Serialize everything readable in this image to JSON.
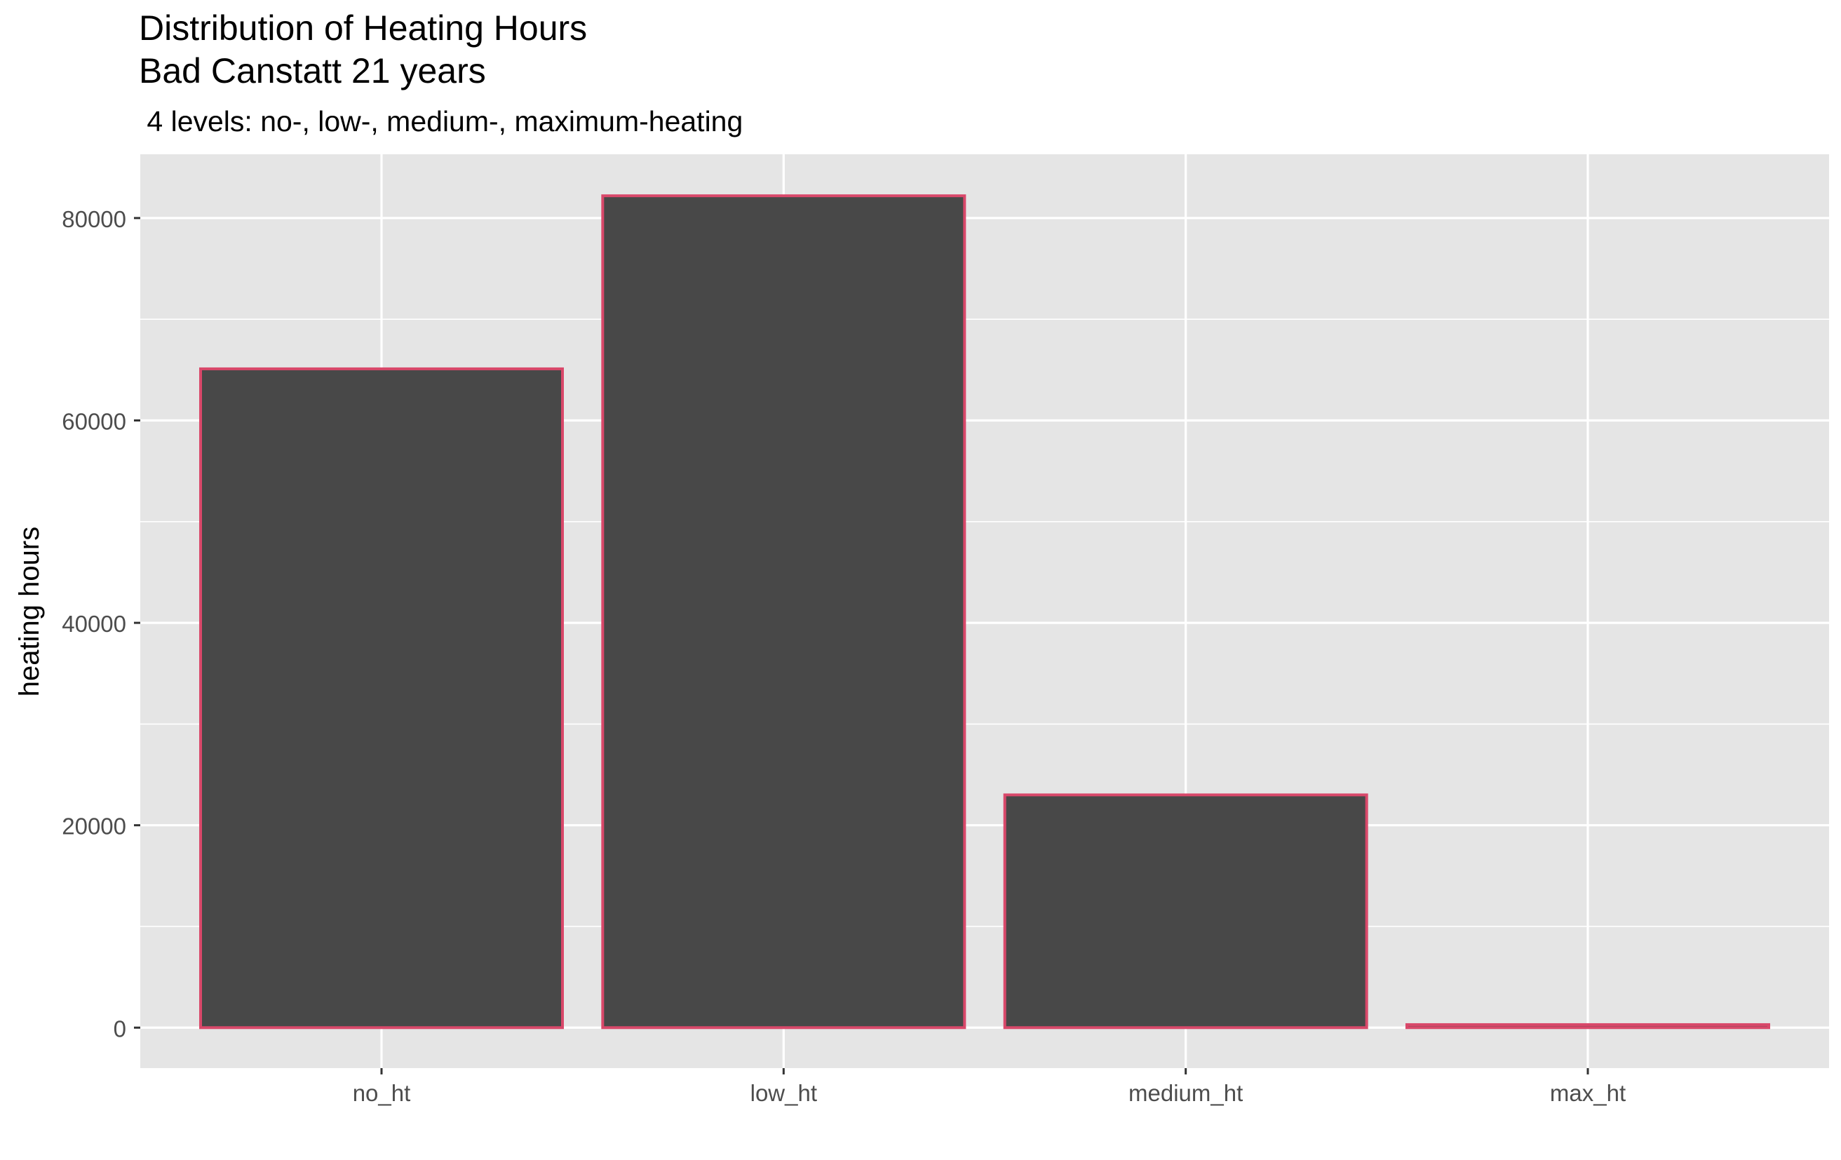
{
  "chart_data": {
    "type": "bar",
    "title": "Distribution of Heating Hours",
    "title_line2": "Bad Canstatt 21 years",
    "subtitle": " 4 levels: no-, low-, medium-, maximum-heating",
    "xlabel": "",
    "ylabel": "heating hours",
    "categories": [
      "no_ht",
      "low_ht",
      "medium_ht",
      "max_ht"
    ],
    "values": [
      65100,
      82200,
      23000,
      300
    ],
    "ylim": [
      -4000,
      86300
    ],
    "yticks": [
      0,
      20000,
      40000,
      60000,
      80000
    ],
    "ytick_labels": [
      "0",
      "20000",
      "40000",
      "60000",
      "80000"
    ],
    "grid": true,
    "legend": "none",
    "colors": {
      "bar_fill": "#484848",
      "bar_outline": "#d9486a",
      "panel_background": "#e5e5e5",
      "grid": "#ffffff"
    }
  }
}
